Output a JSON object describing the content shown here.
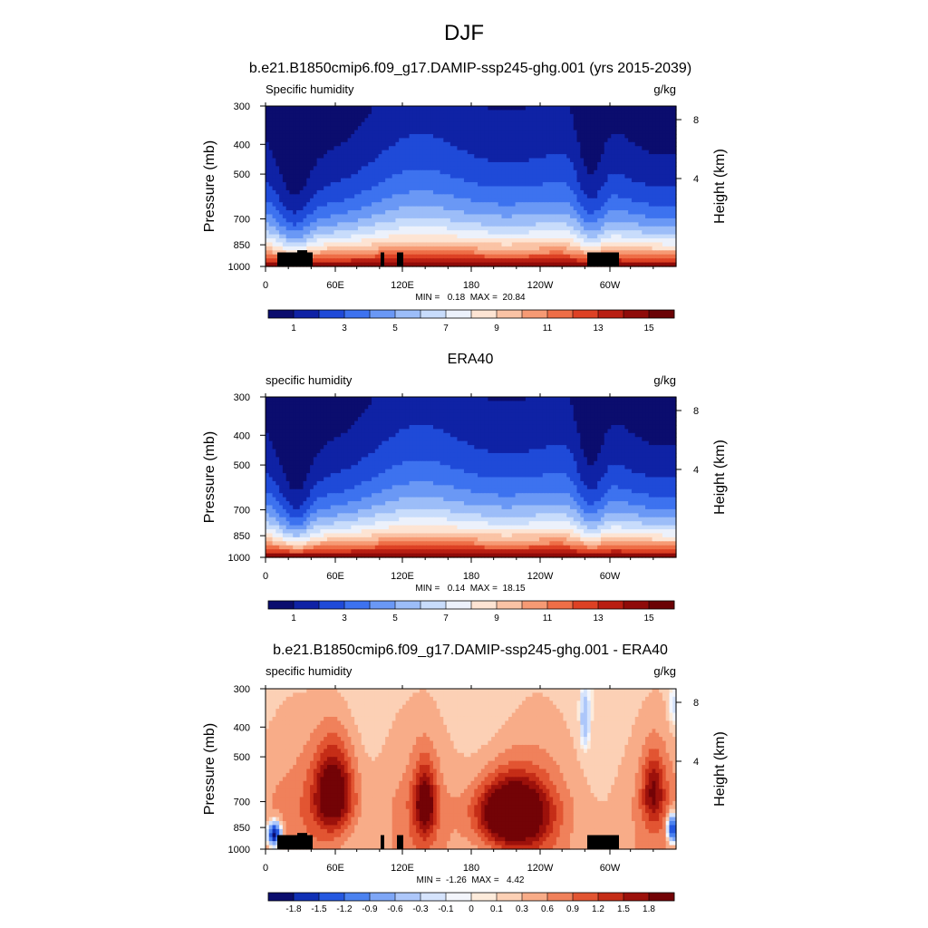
{
  "figure": {
    "title": "DJF"
  },
  "colors": {
    "humidity_scale": [
      "#0b0d6e",
      "#0f22a5",
      "#1f4ad8",
      "#3d72ef",
      "#6a98f5",
      "#9cbdf8",
      "#c8dcfb",
      "#ecf1fb",
      "#fde4d3",
      "#fac3a5",
      "#f69a74",
      "#ee6e47",
      "#dd4124",
      "#b91e12",
      "#8f0b09",
      "#6b0205"
    ],
    "diff_scale": [
      "#0b0d6e",
      "#1030b5",
      "#2558e0",
      "#4b82f0",
      "#7ea6f6",
      "#adc7fa",
      "#d5e3fc",
      "#f3f5fb",
      "#fdebdb",
      "#fcd0b5",
      "#f8ac88",
      "#f0815b",
      "#e25532",
      "#c52d17",
      "#9c110b",
      "#730306"
    ],
    "mask": "#000000"
  },
  "chart_data": [
    {
      "type": "heatmap",
      "title": "b.e21.B1850cmip6.f09_g17.DAMIP-ssp245-ghg.001 (yrs 2015-2039)",
      "variable_label": "Specific humidity",
      "units": "g/kg",
      "ylabel": "Pressure (mb)",
      "y2label": "Height (km)",
      "xticks": [
        "0",
        "60E",
        "120E",
        "180",
        "120W",
        "60W"
      ],
      "yticks": [
        "300",
        "400",
        "500",
        "700",
        "850",
        "1000"
      ],
      "y2ticks": [
        "8",
        "4"
      ],
      "ylim": [
        1000,
        300
      ],
      "stats": "MIN =   0.18  MAX =  20.84",
      "colorbar": [
        "1",
        "3",
        "5",
        "7",
        "9",
        "11",
        "13",
        "15"
      ],
      "masked": true,
      "kind": "humidity_model"
    },
    {
      "type": "heatmap",
      "title": "ERA40",
      "variable_label": "specific humidity",
      "units": "g/kg",
      "ylabel": "Pressure (mb)",
      "y2label": "Height (km)",
      "xticks": [
        "0",
        "60E",
        "120E",
        "180",
        "120W",
        "60W"
      ],
      "yticks": [
        "300",
        "400",
        "500",
        "700",
        "850",
        "1000"
      ],
      "y2ticks": [
        "8",
        "4"
      ],
      "ylim": [
        1000,
        300
      ],
      "stats": "MIN =   0.14  MAX =  18.15",
      "colorbar": [
        "1",
        "3",
        "5",
        "7",
        "9",
        "11",
        "13",
        "15"
      ],
      "masked": false,
      "kind": "humidity_obs"
    },
    {
      "type": "heatmap",
      "title": "b.e21.B1850cmip6.f09_g17.DAMIP-ssp245-ghg.001 - ERA40",
      "variable_label": "specific humidity",
      "units": "g/kg",
      "ylabel": "Pressure (mb)",
      "y2label": "Height (km)",
      "xticks": [
        "0",
        "60E",
        "120E",
        "180",
        "120W",
        "60W"
      ],
      "yticks": [
        "300",
        "400",
        "500",
        "700",
        "850",
        "1000"
      ],
      "y2ticks": [
        "8",
        "4"
      ],
      "ylim": [
        1000,
        300
      ],
      "stats": "MIN =  -1.26  MAX =   4.42",
      "colorbar": [
        "-1.8",
        "-1.5",
        "-1.2",
        "-0.9",
        "-0.6",
        "-0.3",
        "-0.1",
        "0",
        "0.1",
        "0.3",
        "0.6",
        "0.9",
        "1.2",
        "1.5",
        "1.8"
      ],
      "masked": true,
      "kind": "difference"
    }
  ]
}
